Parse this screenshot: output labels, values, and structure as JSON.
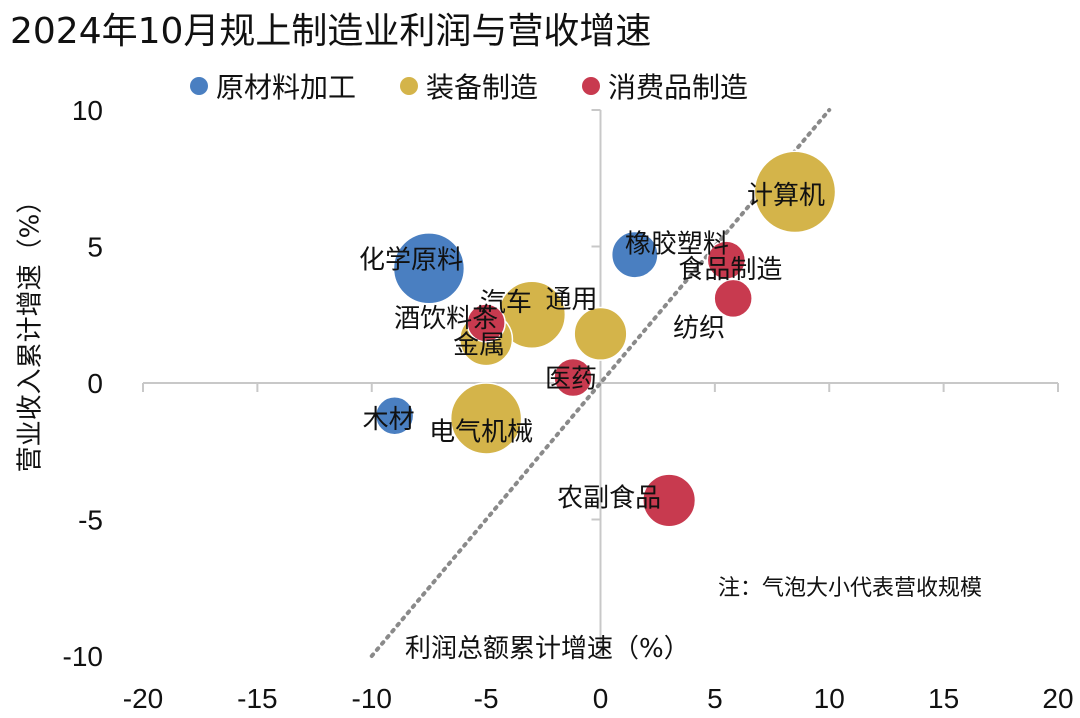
{
  "chart_data": {
    "type": "scatter",
    "title": "2024年10月规上制造业利润与营收增速",
    "xlabel": "利润总额累计增速（%）",
    "ylabel": "营业收入累计增速（%）",
    "xlim": [
      -20,
      20
    ],
    "ylim": [
      -10,
      10
    ],
    "x_ticks": [
      "-20",
      "-15",
      "-10",
      "-5",
      "0",
      "5",
      "10",
      "15",
      "20"
    ],
    "y_ticks": [
      "10",
      "5",
      "0",
      "-5",
      "-10"
    ],
    "note": "注：气泡大小代表营收规模",
    "reference_line": {
      "style": "dotted",
      "slope": 1,
      "intercept": 0,
      "range": [
        -10,
        10
      ]
    },
    "legend_position": "top",
    "series": [
      {
        "name": "原材料加工",
        "color": "#4a7fc1",
        "points": [
          {
            "label": "化学原料",
            "x": -7.5,
            "y": 4.2,
            "size": 7
          },
          {
            "label": "橡胶塑料",
            "x": 1.5,
            "y": 4.7,
            "size": 2
          },
          {
            "label": "木材",
            "x": -9.0,
            "y": -1.2,
            "size": 1
          }
        ]
      },
      {
        "name": "装备制造",
        "color": "#d4b44a",
        "points": [
          {
            "label": "计算机",
            "x": 8.5,
            "y": 7.0,
            "size": 10
          },
          {
            "label": "汽车",
            "x": -3.0,
            "y": 2.5,
            "size": 6
          },
          {
            "label": "通用",
            "x": 0.0,
            "y": 1.8,
            "size": 3
          },
          {
            "label": "金属",
            "x": -5.0,
            "y": 1.6,
            "size": 3
          },
          {
            "label": "电气机械",
            "x": -5.0,
            "y": -1.3,
            "size": 7
          }
        ]
      },
      {
        "name": "消费品制造",
        "color": "#c83a4f",
        "points": [
          {
            "label": "食品制造",
            "x": 5.5,
            "y": 4.5,
            "size": 1
          },
          {
            "label": "纺织",
            "x": 5.8,
            "y": 3.1,
            "size": 1
          },
          {
            "label": "酒饮料茶",
            "x": -5.0,
            "y": 2.2,
            "size": 1
          },
          {
            "label": "医药",
            "x": -1.2,
            "y": 0.2,
            "size": 1
          },
          {
            "label": "农副食品",
            "x": 3.0,
            "y": -4.3,
            "size": 3
          }
        ]
      }
    ]
  }
}
